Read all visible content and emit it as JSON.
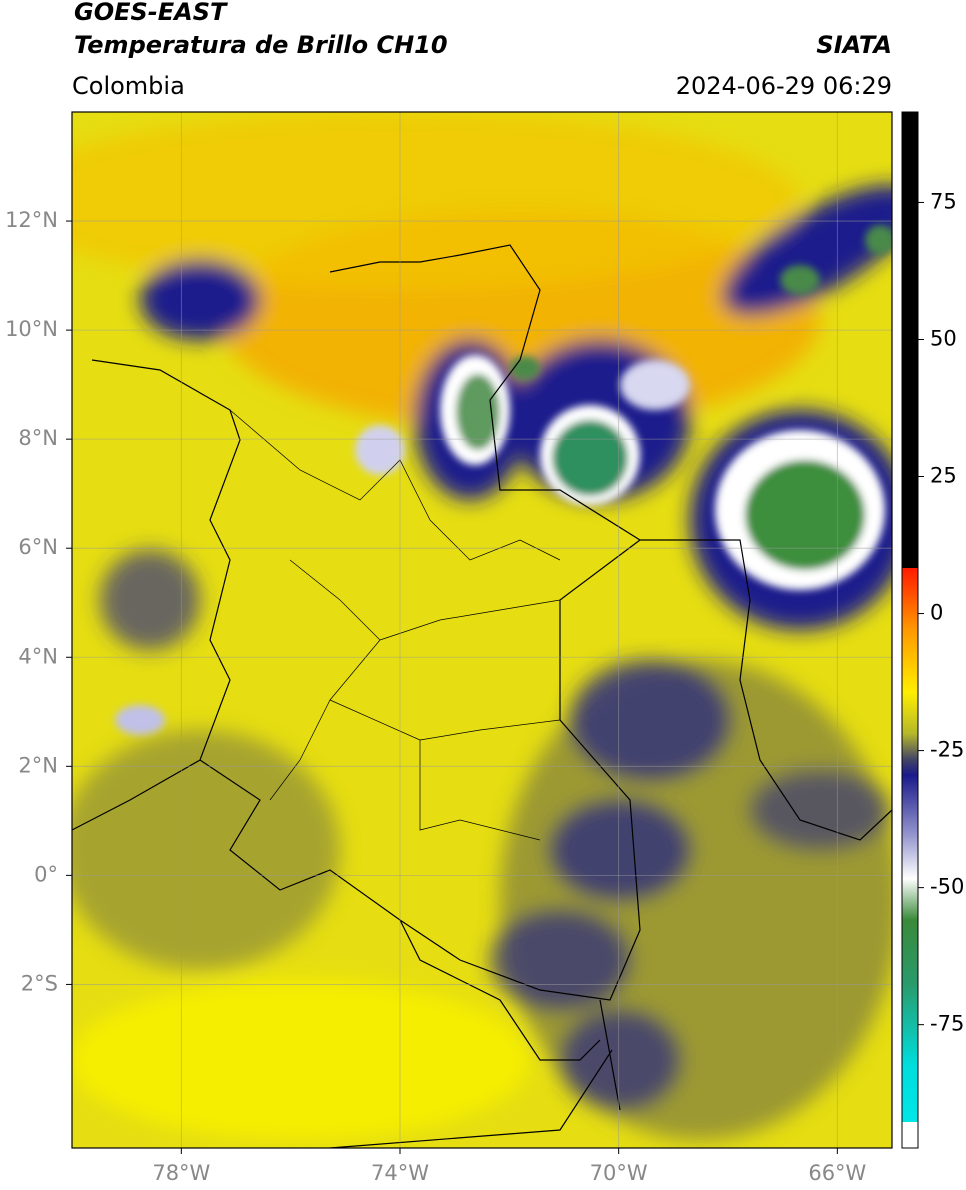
{
  "header": {
    "title": "GOES-EAST",
    "subtitle": "Temperatura de Brillo CH10",
    "source": "SIATA",
    "region": "Colombia",
    "datetime": "2024-06-29 06:29"
  },
  "map": {
    "lonlim": [
      -80,
      -65
    ],
    "latlim": [
      -5,
      14
    ],
    "lon_ticks": [
      {
        "value": -78,
        "label": "78°W"
      },
      {
        "value": -74,
        "label": "74°W"
      },
      {
        "value": -70,
        "label": "70°W"
      },
      {
        "value": -66,
        "label": "66°W"
      }
    ],
    "lat_ticks": [
      {
        "value": 12,
        "label": "12°N"
      },
      {
        "value": 10,
        "label": "10°N"
      },
      {
        "value": 8,
        "label": "8°N"
      },
      {
        "value": 6,
        "label": "6°N"
      },
      {
        "value": 4,
        "label": "4°N"
      },
      {
        "value": 2,
        "label": "2°N"
      },
      {
        "value": 0,
        "label": "0°"
      },
      {
        "value": -2,
        "label": "2°S"
      }
    ]
  },
  "colorbar": {
    "lim": [
      -97.5,
      91.5
    ],
    "ticks": [
      75,
      50,
      25,
      0,
      -25,
      -50,
      -75
    ]
  }
}
